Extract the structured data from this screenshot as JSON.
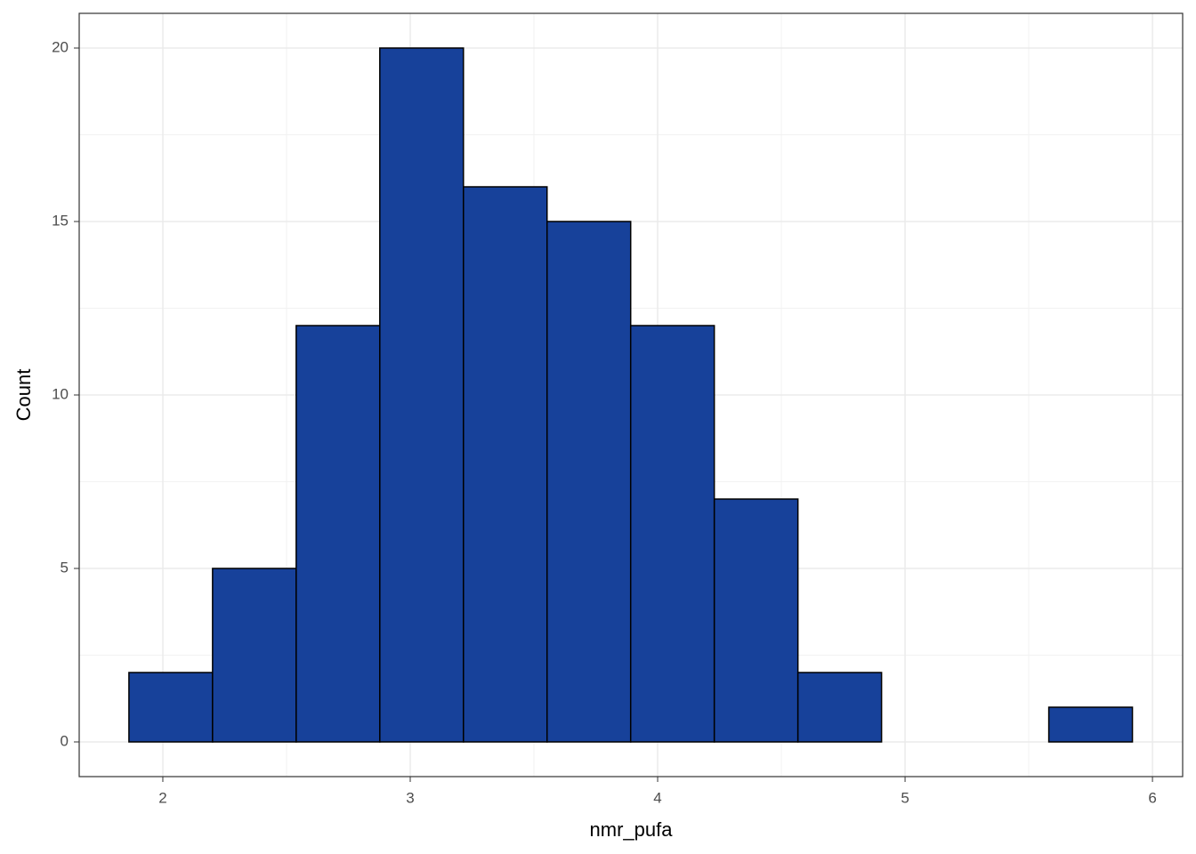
{
  "chart_data": {
    "type": "histogram",
    "x_label": "nmr_pufa",
    "y_label": "Count",
    "bins": [
      1.863,
      2.201,
      2.539,
      2.877,
      3.215,
      3.553,
      3.891,
      4.229,
      4.567,
      4.905,
      5.243,
      5.581,
      5.919
    ],
    "values": [
      2,
      5,
      12,
      20,
      16,
      15,
      12,
      7,
      2,
      0,
      0,
      1
    ],
    "color": "#17419a",
    "edge_color": "#000000",
    "xlim": [
      1.662,
      6.122
    ],
    "ylim": [
      -1,
      21
    ],
    "xticks": [
      2,
      3,
      4,
      5,
      6
    ],
    "yticks": [
      0,
      5,
      10,
      15,
      20
    ],
    "grid": true
  }
}
